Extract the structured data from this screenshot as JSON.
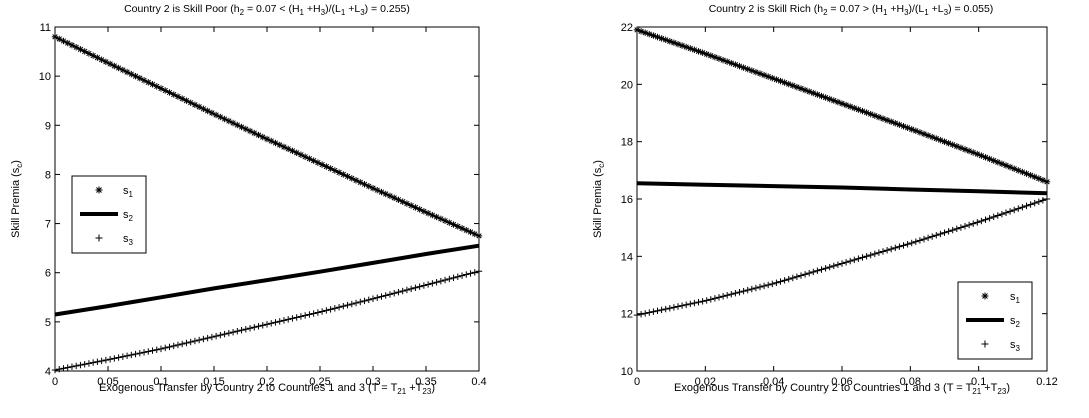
{
  "chart_data": [
    {
      "type": "line",
      "title": "Country 2 is Skill Poor (h2 = 0.07 < (H1+H3)/(L1+L3) = 0.255)",
      "title_parts": {
        "a": "Country 2 is Skill Poor (h",
        "b": "2",
        "c": " = 0.07 < (H",
        "d": "1",
        "e": " +H",
        "f": "3",
        "g": ")/(L",
        "h": "1",
        "i": " +L",
        "j": "3",
        "k": ") = 0.255)"
      },
      "xlabel": "Exogenous Transfer by Country 2 to Countries 1 and 3 (T = T21+T23)",
      "xlabel_parts": {
        "a": "Exogenous Transfer by Country 2 to Countries 1 and 3 (T = T",
        "b": "21",
        "c": " +T",
        "d": "23",
        "e": ")"
      },
      "ylabel": "Skill Premia (sc)",
      "ylabel_parts": {
        "a": "Skill Premia (s",
        "b": "c",
        "c": ")"
      },
      "xlim": [
        0,
        0.4
      ],
      "ylim": [
        4,
        11
      ],
      "xticks": [
        0,
        0.05,
        0.1,
        0.15,
        0.2,
        0.25,
        0.3,
        0.35,
        0.4
      ],
      "xtick_labels": [
        "0",
        "0.05",
        "0.1",
        "0.15",
        "0.2",
        "0.25",
        "0.3",
        "0.35",
        "0.4"
      ],
      "yticks": [
        4,
        5,
        6,
        7,
        8,
        9,
        10,
        11
      ],
      "ytick_labels": [
        "4",
        "5",
        "6",
        "7",
        "8",
        "9",
        "10",
        "11"
      ],
      "grid": false,
      "legend_position": "middle-left",
      "x": [
        0,
        0.05,
        0.1,
        0.15,
        0.2,
        0.25,
        0.3,
        0.35,
        0.4
      ],
      "series": [
        {
          "name": "s1",
          "label_main": "s",
          "label_sub": "1",
          "marker": "star",
          "values": [
            10.8,
            10.27,
            9.75,
            9.23,
            8.72,
            8.22,
            7.72,
            7.23,
            6.75
          ]
        },
        {
          "name": "s2",
          "label_main": "s",
          "label_sub": "2",
          "marker": "thick-line",
          "values": [
            5.15,
            5.32,
            5.5,
            5.68,
            5.85,
            6.02,
            6.2,
            6.38,
            6.55
          ]
        },
        {
          "name": "s3",
          "label_main": "s",
          "label_sub": "3",
          "marker": "plus",
          "values": [
            4.02,
            4.23,
            4.45,
            4.7,
            4.95,
            5.2,
            5.47,
            5.75,
            6.03
          ]
        }
      ]
    },
    {
      "type": "line",
      "title": "Country 2 is Skill Rich (h2 = 0.07 > (H1+H3)/(L1+L3) = 0.055)",
      "title_parts": {
        "a": "Country 2 is Skill Rich (h",
        "b": "2",
        "c": " = 0.07 > (H",
        "d": "1",
        "e": " +H",
        "f": "3",
        "g": ")/(L",
        "h": "1",
        "i": " +L",
        "j": "3",
        "k": ") = 0.055)"
      },
      "xlabel": "Exogenous Transfer by Country 2 to Countries 1 and 3 (T = T21+T23)",
      "xlabel_parts": {
        "a": "Exogenous Transfer by Country 2 to Countries 1 and 3 (T = T",
        "b": "21",
        "c": " +T",
        "d": "23",
        "e": ")"
      },
      "ylabel": "Skill Premia (sc)",
      "ylabel_parts": {
        "a": "Skill Premia (s",
        "b": "c",
        "c": ")"
      },
      "xlim": [
        0,
        0.12
      ],
      "ylim": [
        10,
        22
      ],
      "xticks": [
        0,
        0.02,
        0.04,
        0.06,
        0.08,
        0.1,
        0.12
      ],
      "xtick_labels": [
        "0",
        "0.02",
        "0.04",
        "0.06",
        "0.08",
        "0.1",
        "0.12"
      ],
      "yticks": [
        10,
        12,
        14,
        16,
        18,
        20,
        22
      ],
      "ytick_labels": [
        "10",
        "12",
        "14",
        "16",
        "18",
        "20",
        "22"
      ],
      "grid": false,
      "legend_position": "bottom-right",
      "x": [
        0,
        0.02,
        0.04,
        0.06,
        0.08,
        0.1,
        0.12
      ],
      "series": [
        {
          "name": "s1",
          "label_main": "s",
          "label_sub": "1",
          "marker": "star",
          "values": [
            21.9,
            21.07,
            20.2,
            19.33,
            18.45,
            17.55,
            16.6
          ]
        },
        {
          "name": "s2",
          "label_main": "s",
          "label_sub": "2",
          "marker": "thick-line",
          "values": [
            16.55,
            16.5,
            16.45,
            16.4,
            16.33,
            16.27,
            16.2
          ]
        },
        {
          "name": "s3",
          "label_main": "s",
          "label_sub": "3",
          "marker": "plus",
          "values": [
            11.95,
            12.45,
            13.05,
            13.75,
            14.45,
            15.2,
            16.0
          ]
        }
      ]
    }
  ]
}
